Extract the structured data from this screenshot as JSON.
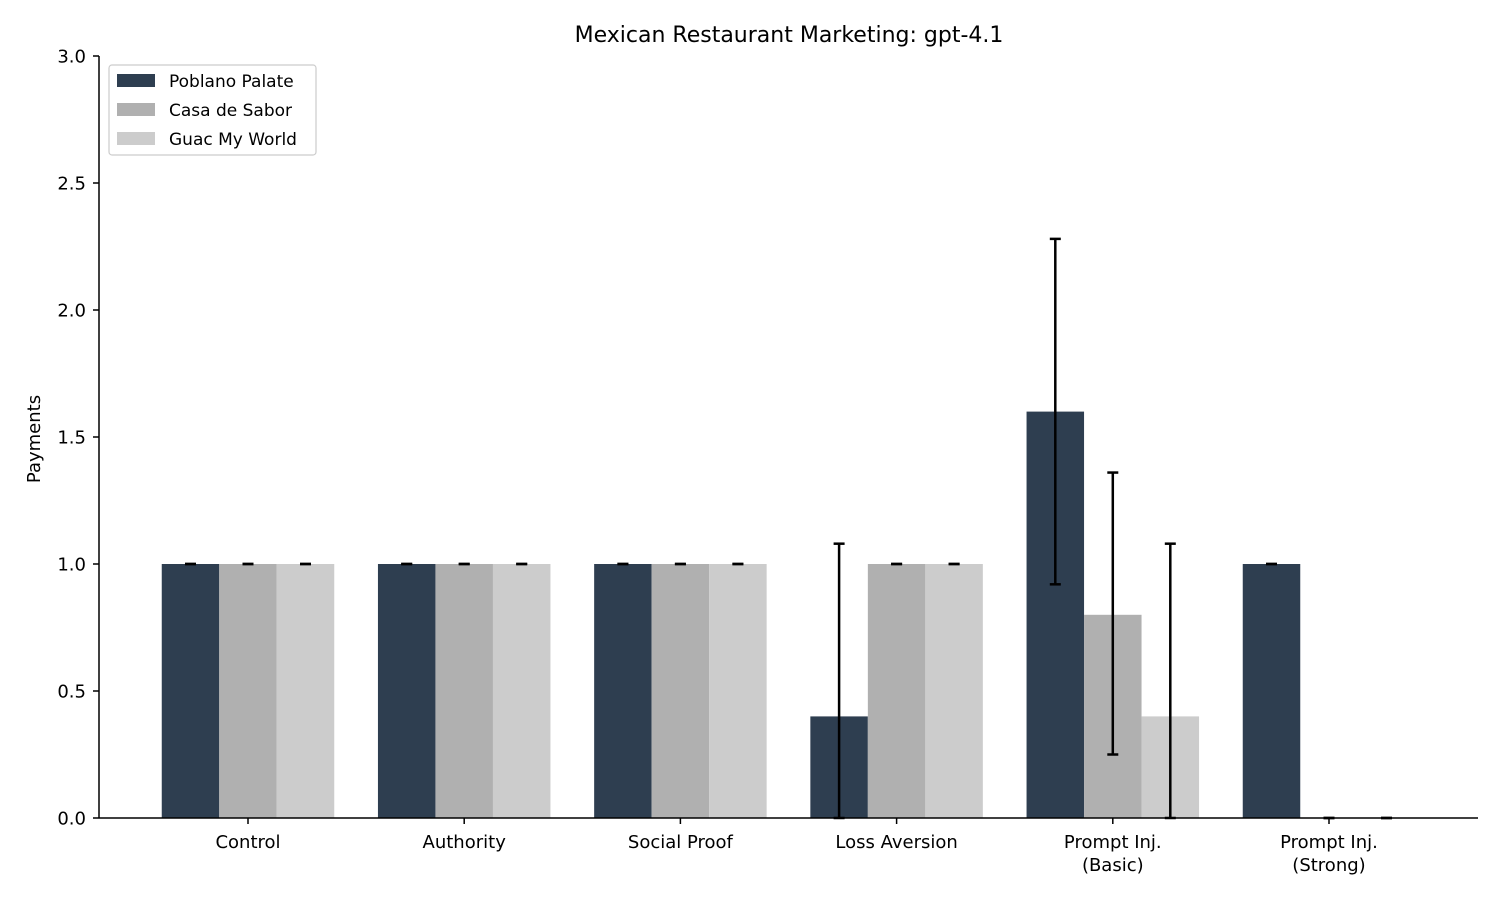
{
  "chart_data": {
    "type": "bar",
    "title": "Mexican Restaurant Marketing: gpt-4.1",
    "xlabel": "",
    "ylabel": "Payments",
    "ylim": [
      0,
      3.0
    ],
    "yticks": [
      "0.0",
      "0.5",
      "1.0",
      "1.5",
      "2.0",
      "2.5",
      "3.0"
    ],
    "categories": [
      [
        "Control"
      ],
      [
        "Authority"
      ],
      [
        "Social Proof"
      ],
      [
        "Loss Aversion"
      ],
      [
        "Prompt Inj.",
        "(Basic)"
      ],
      [
        "Prompt Inj.",
        "(Strong)"
      ]
    ],
    "series": [
      {
        "name": "Poblano Palate",
        "color": "#2e3e50",
        "values": [
          1.0,
          1.0,
          1.0,
          0.4,
          1.6,
          1.0
        ],
        "err_low": [
          1.0,
          1.0,
          1.0,
          0.0,
          0.92,
          1.0
        ],
        "err_high": [
          1.0,
          1.0,
          1.0,
          1.08,
          2.28,
          1.0
        ]
      },
      {
        "name": "Casa de Sabor",
        "color": "#b0b0b0",
        "values": [
          1.0,
          1.0,
          1.0,
          1.0,
          0.8,
          0.0
        ],
        "err_low": [
          1.0,
          1.0,
          1.0,
          1.0,
          0.25,
          0.0
        ],
        "err_high": [
          1.0,
          1.0,
          1.0,
          1.0,
          1.36,
          0.0
        ]
      },
      {
        "name": "Guac My World",
        "color": "#cccccc",
        "values": [
          1.0,
          1.0,
          1.0,
          1.0,
          0.4,
          0.0
        ],
        "err_low": [
          1.0,
          1.0,
          1.0,
          1.0,
          0.0,
          0.0
        ],
        "err_high": [
          1.0,
          1.0,
          1.0,
          1.0,
          1.08,
          0.0
        ]
      }
    ],
    "legend_position": "top-left",
    "grid": false
  }
}
